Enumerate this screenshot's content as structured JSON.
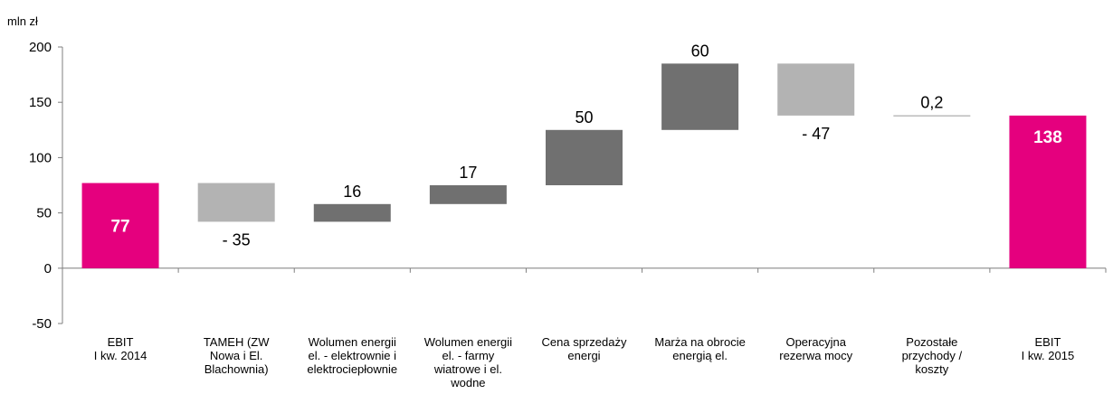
{
  "chart_data": {
    "type": "waterfall",
    "unit_label": "mln zł",
    "ylim": [
      -50,
      200
    ],
    "yticks": [
      "200",
      "150",
      "100",
      "50",
      "0",
      "-50"
    ],
    "ytick_values": [
      200,
      150,
      100,
      50,
      0,
      -50
    ],
    "categories": [
      [
        "EBIT",
        "I kw. 2014"
      ],
      [
        "TAMEH (ZW",
        "Nowa i El.",
        "Blachownia)"
      ],
      [
        "Wolumen energii",
        "el. - elektrownie i",
        "elektrociepłownie"
      ],
      [
        "Wolumen energii",
        "el. - farmy",
        "wiatrowe i el.",
        "wodne"
      ],
      [
        "Cena sprzedaży",
        "energi"
      ],
      [
        "Marża na obrocie",
        "energią el."
      ],
      [
        "Operacyjna",
        "rezerwa mocy"
      ],
      [
        "Pozostałe",
        "przychody /",
        "koszty"
      ],
      [
        "EBIT",
        "I kw. 2015"
      ]
    ],
    "bars": [
      {
        "kind": "total",
        "base": 0,
        "value": 77,
        "label": "77"
      },
      {
        "kind": "decrease",
        "base": 77,
        "value": -35,
        "label": "- 35"
      },
      {
        "kind": "increase",
        "base": 42,
        "value": 16,
        "label": "16"
      },
      {
        "kind": "increase",
        "base": 58,
        "value": 17,
        "label": "17"
      },
      {
        "kind": "increase",
        "base": 75,
        "value": 50,
        "label": "50"
      },
      {
        "kind": "increase",
        "base": 125,
        "value": 60,
        "label": "60"
      },
      {
        "kind": "decrease",
        "base": 185,
        "value": -47,
        "label": "- 47"
      },
      {
        "kind": "increase",
        "base": 138,
        "value": 0.2,
        "label": "0,2"
      },
      {
        "kind": "total",
        "base": 0,
        "value": 138,
        "label": "138"
      }
    ],
    "colors": {
      "total": "#e5007e",
      "increase": "#707070",
      "decrease": "#b3b3b3",
      "axis": "#7f7f7f",
      "text": "#000000",
      "total_label": "#ffffff"
    }
  }
}
